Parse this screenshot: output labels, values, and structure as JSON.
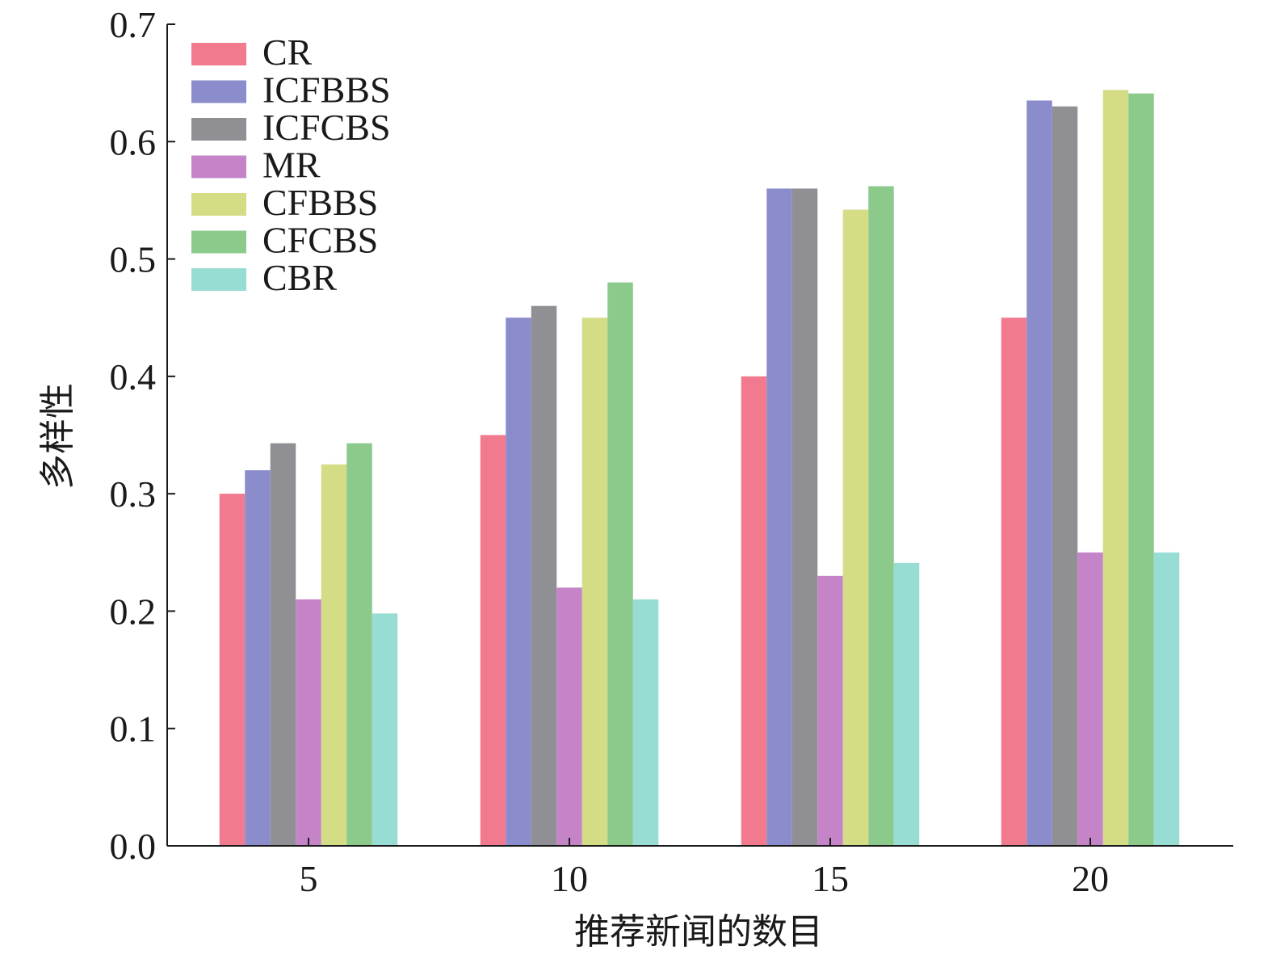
{
  "chart_data": {
    "type": "bar",
    "title": "",
    "xlabel": "推荐新闻的数目",
    "ylabel": "多样性",
    "categories": [
      "5",
      "10",
      "15",
      "20"
    ],
    "ylim": [
      0,
      0.7
    ],
    "yticks": [
      "0.0",
      "0.1",
      "0.2",
      "0.3",
      "0.4",
      "0.5",
      "0.6",
      "0.7"
    ],
    "legend_position": "top-left",
    "grid": false,
    "series": [
      {
        "name": "CR",
        "color": "#f27a8e",
        "values": [
          0.3,
          0.35,
          0.4,
          0.45
        ]
      },
      {
        "name": "ICFBBS",
        "color": "#8b8ccb",
        "values": [
          0.32,
          0.45,
          0.56,
          0.635
        ]
      },
      {
        "name": "ICFCBS",
        "color": "#8f8f94",
        "values": [
          0.343,
          0.46,
          0.56,
          0.63
        ]
      },
      {
        "name": "MR",
        "color": "#c583c8",
        "values": [
          0.21,
          0.22,
          0.23,
          0.25
        ]
      },
      {
        "name": "CFBBS",
        "color": "#d5dc86",
        "values": [
          0.325,
          0.45,
          0.542,
          0.644
        ]
      },
      {
        "name": "CFCBS",
        "color": "#8bca8b",
        "values": [
          0.343,
          0.48,
          0.562,
          0.641
        ]
      },
      {
        "name": "CBR",
        "color": "#98ddd3",
        "values": [
          0.198,
          0.21,
          0.241,
          0.25
        ]
      }
    ]
  }
}
